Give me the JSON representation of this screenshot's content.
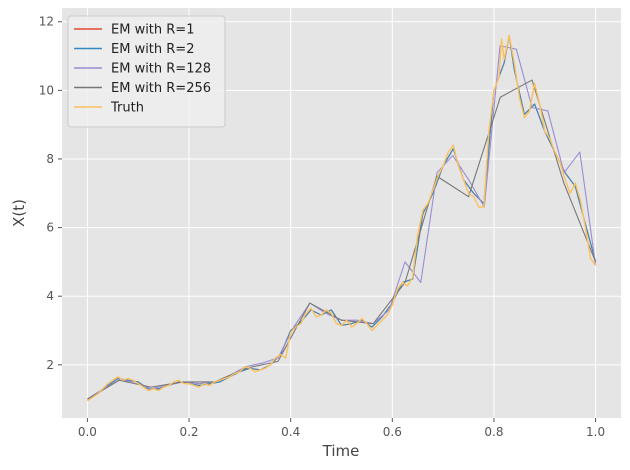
{
  "chart_data": {
    "type": "line",
    "title": "",
    "xlabel": "Time",
    "ylabel": "X(t)",
    "xlim": [
      -0.05,
      1.05
    ],
    "ylim": [
      0.45,
      12.4
    ],
    "xticks": [
      0.0,
      0.2,
      0.4,
      0.6,
      0.8,
      1.0
    ],
    "xtick_labels": [
      "0.0",
      "0.2",
      "0.4",
      "0.6",
      "0.8",
      "1.0"
    ],
    "yticks": [
      2,
      4,
      6,
      8,
      10,
      12
    ],
    "ytick_labels": [
      "2",
      "4",
      "6",
      "8",
      "10",
      "12"
    ],
    "grid": true,
    "background": "#e5e5e5",
    "legend_position": "top-left",
    "series": [
      {
        "name": "EM with R=1",
        "color": "#e24a33",
        "points": [
          [
            0.0,
            1.0
          ],
          [
            0.02,
            1.15
          ],
          [
            0.04,
            1.4
          ],
          [
            0.06,
            1.6
          ],
          [
            0.08,
            1.55
          ],
          [
            0.1,
            1.5
          ],
          [
            0.12,
            1.3
          ],
          [
            0.14,
            1.3
          ],
          [
            0.16,
            1.4
          ],
          [
            0.18,
            1.5
          ],
          [
            0.2,
            1.45
          ],
          [
            0.22,
            1.4
          ],
          [
            0.24,
            1.45
          ],
          [
            0.26,
            1.5
          ],
          [
            0.28,
            1.65
          ],
          [
            0.3,
            1.8
          ],
          [
            0.32,
            1.9
          ],
          [
            0.34,
            1.85
          ],
          [
            0.36,
            2.0
          ],
          [
            0.38,
            2.3
          ],
          [
            0.4,
            3.0
          ],
          [
            0.42,
            3.25
          ],
          [
            0.44,
            3.6
          ],
          [
            0.46,
            3.45
          ],
          [
            0.48,
            3.6
          ],
          [
            0.5,
            3.15
          ],
          [
            0.52,
            3.2
          ],
          [
            0.54,
            3.3
          ],
          [
            0.56,
            3.1
          ],
          [
            0.58,
            3.4
          ],
          [
            0.6,
            3.8
          ],
          [
            0.62,
            4.4
          ],
          [
            0.64,
            4.5
          ],
          [
            0.66,
            6.4
          ],
          [
            0.68,
            7.0
          ],
          [
            0.7,
            7.8
          ],
          [
            0.72,
            8.3
          ],
          [
            0.74,
            7.4
          ],
          [
            0.76,
            7.0
          ],
          [
            0.78,
            6.7
          ],
          [
            0.8,
            10.0
          ],
          [
            0.82,
            10.8
          ],
          [
            0.83,
            11.6
          ],
          [
            0.84,
            10.6
          ],
          [
            0.86,
            9.3
          ],
          [
            0.88,
            9.6
          ],
          [
            0.9,
            8.8
          ],
          [
            0.92,
            8.2
          ],
          [
            0.94,
            7.6
          ],
          [
            0.96,
            7.2
          ],
          [
            0.98,
            6.1
          ],
          [
            1.0,
            5.0
          ]
        ]
      },
      {
        "name": "EM with R=2",
        "color": "#348abd",
        "points": [
          [
            0.0,
            1.0
          ],
          [
            0.02,
            1.15
          ],
          [
            0.04,
            1.4
          ],
          [
            0.06,
            1.6
          ],
          [
            0.08,
            1.55
          ],
          [
            0.1,
            1.5
          ],
          [
            0.12,
            1.3
          ],
          [
            0.14,
            1.3
          ],
          [
            0.16,
            1.4
          ],
          [
            0.18,
            1.5
          ],
          [
            0.2,
            1.45
          ],
          [
            0.22,
            1.4
          ],
          [
            0.24,
            1.45
          ],
          [
            0.26,
            1.5
          ],
          [
            0.28,
            1.65
          ],
          [
            0.3,
            1.8
          ],
          [
            0.32,
            1.9
          ],
          [
            0.34,
            1.85
          ],
          [
            0.36,
            2.0
          ],
          [
            0.38,
            2.3
          ],
          [
            0.4,
            3.0
          ],
          [
            0.42,
            3.25
          ],
          [
            0.44,
            3.6
          ],
          [
            0.46,
            3.45
          ],
          [
            0.48,
            3.6
          ],
          [
            0.5,
            3.15
          ],
          [
            0.52,
            3.2
          ],
          [
            0.54,
            3.3
          ],
          [
            0.56,
            3.1
          ],
          [
            0.58,
            3.4
          ],
          [
            0.6,
            3.8
          ],
          [
            0.62,
            4.4
          ],
          [
            0.64,
            4.5
          ],
          [
            0.66,
            6.4
          ],
          [
            0.68,
            7.0
          ],
          [
            0.7,
            7.8
          ],
          [
            0.72,
            8.3
          ],
          [
            0.74,
            7.4
          ],
          [
            0.76,
            7.0
          ],
          [
            0.78,
            6.7
          ],
          [
            0.8,
            10.0
          ],
          [
            0.82,
            10.8
          ],
          [
            0.83,
            11.6
          ],
          [
            0.84,
            10.6
          ],
          [
            0.86,
            9.3
          ],
          [
            0.88,
            9.6
          ],
          [
            0.9,
            8.8
          ],
          [
            0.92,
            8.2
          ],
          [
            0.94,
            7.6
          ],
          [
            0.96,
            7.2
          ],
          [
            0.98,
            6.1
          ],
          [
            1.0,
            5.0
          ]
        ]
      },
      {
        "name": "EM with R=128",
        "color": "#988ed5",
        "points": [
          [
            0.0,
            1.0
          ],
          [
            0.031,
            1.3
          ],
          [
            0.062,
            1.55
          ],
          [
            0.094,
            1.5
          ],
          [
            0.125,
            1.3
          ],
          [
            0.156,
            1.4
          ],
          [
            0.188,
            1.5
          ],
          [
            0.219,
            1.45
          ],
          [
            0.25,
            1.5
          ],
          [
            0.281,
            1.7
          ],
          [
            0.312,
            1.95
          ],
          [
            0.344,
            2.05
          ],
          [
            0.375,
            2.2
          ],
          [
            0.406,
            3.1
          ],
          [
            0.438,
            3.8
          ],
          [
            0.469,
            3.5
          ],
          [
            0.5,
            3.3
          ],
          [
            0.531,
            3.3
          ],
          [
            0.562,
            3.2
          ],
          [
            0.594,
            3.6
          ],
          [
            0.625,
            5.0
          ],
          [
            0.656,
            4.4
          ],
          [
            0.688,
            7.6
          ],
          [
            0.719,
            8.1
          ],
          [
            0.75,
            7.4
          ],
          [
            0.781,
            6.6
          ],
          [
            0.812,
            11.3
          ],
          [
            0.844,
            11.2
          ],
          [
            0.875,
            9.5
          ],
          [
            0.906,
            9.4
          ],
          [
            0.938,
            7.6
          ],
          [
            0.969,
            8.2
          ],
          [
            1.0,
            4.9
          ]
        ]
      },
      {
        "name": "EM with R=256",
        "color": "#777777",
        "points": [
          [
            0.0,
            1.0
          ],
          [
            0.0625,
            1.55
          ],
          [
            0.125,
            1.35
          ],
          [
            0.1875,
            1.5
          ],
          [
            0.25,
            1.5
          ],
          [
            0.3125,
            1.9
          ],
          [
            0.375,
            2.1
          ],
          [
            0.4375,
            3.8
          ],
          [
            0.5,
            3.3
          ],
          [
            0.5625,
            3.2
          ],
          [
            0.625,
            4.4
          ],
          [
            0.6875,
            7.5
          ],
          [
            0.75,
            6.9
          ],
          [
            0.8125,
            9.8
          ],
          [
            0.875,
            10.3
          ],
          [
            0.9375,
            7.3
          ],
          [
            1.0,
            5.0
          ]
        ]
      },
      {
        "name": "Truth",
        "color": "#fbc15e",
        "points": [
          [
            0.0,
            0.95
          ],
          [
            0.01,
            1.05
          ],
          [
            0.02,
            1.15
          ],
          [
            0.03,
            1.3
          ],
          [
            0.04,
            1.45
          ],
          [
            0.05,
            1.55
          ],
          [
            0.06,
            1.65
          ],
          [
            0.07,
            1.55
          ],
          [
            0.08,
            1.6
          ],
          [
            0.09,
            1.55
          ],
          [
            0.1,
            1.45
          ],
          [
            0.11,
            1.35
          ],
          [
            0.12,
            1.25
          ],
          [
            0.13,
            1.3
          ],
          [
            0.14,
            1.25
          ],
          [
            0.15,
            1.35
          ],
          [
            0.16,
            1.4
          ],
          [
            0.17,
            1.5
          ],
          [
            0.18,
            1.55
          ],
          [
            0.19,
            1.45
          ],
          [
            0.2,
            1.45
          ],
          [
            0.21,
            1.4
          ],
          [
            0.22,
            1.35
          ],
          [
            0.23,
            1.45
          ],
          [
            0.24,
            1.4
          ],
          [
            0.25,
            1.5
          ],
          [
            0.26,
            1.55
          ],
          [
            0.27,
            1.6
          ],
          [
            0.28,
            1.65
          ],
          [
            0.29,
            1.75
          ],
          [
            0.3,
            1.8
          ],
          [
            0.31,
            1.95
          ],
          [
            0.32,
            1.9
          ],
          [
            0.33,
            1.8
          ],
          [
            0.34,
            1.85
          ],
          [
            0.35,
            1.9
          ],
          [
            0.36,
            2.0
          ],
          [
            0.37,
            2.2
          ],
          [
            0.38,
            2.3
          ],
          [
            0.39,
            2.2
          ],
          [
            0.4,
            2.95
          ],
          [
            0.41,
            3.1
          ],
          [
            0.42,
            3.2
          ],
          [
            0.43,
            3.5
          ],
          [
            0.44,
            3.65
          ],
          [
            0.45,
            3.4
          ],
          [
            0.46,
            3.45
          ],
          [
            0.47,
            3.6
          ],
          [
            0.48,
            3.5
          ],
          [
            0.49,
            3.2
          ],
          [
            0.5,
            3.15
          ],
          [
            0.51,
            3.3
          ],
          [
            0.52,
            3.1
          ],
          [
            0.53,
            3.2
          ],
          [
            0.54,
            3.35
          ],
          [
            0.55,
            3.2
          ],
          [
            0.56,
            3.0
          ],
          [
            0.57,
            3.15
          ],
          [
            0.58,
            3.3
          ],
          [
            0.59,
            3.45
          ],
          [
            0.6,
            3.75
          ],
          [
            0.61,
            4.2
          ],
          [
            0.62,
            4.4
          ],
          [
            0.63,
            4.3
          ],
          [
            0.64,
            4.55
          ],
          [
            0.65,
            5.8
          ],
          [
            0.66,
            6.5
          ],
          [
            0.67,
            6.7
          ],
          [
            0.68,
            7.1
          ],
          [
            0.69,
            7.5
          ],
          [
            0.7,
            7.8
          ],
          [
            0.71,
            8.2
          ],
          [
            0.72,
            8.4
          ],
          [
            0.73,
            7.8
          ],
          [
            0.74,
            7.4
          ],
          [
            0.75,
            7.0
          ],
          [
            0.76,
            6.9
          ],
          [
            0.77,
            6.6
          ],
          [
            0.78,
            6.6
          ],
          [
            0.79,
            8.8
          ],
          [
            0.8,
            10.0
          ],
          [
            0.81,
            10.4
          ],
          [
            0.815,
            11.5
          ],
          [
            0.82,
            10.9
          ],
          [
            0.83,
            11.6
          ],
          [
            0.84,
            10.8
          ],
          [
            0.85,
            9.8
          ],
          [
            0.86,
            9.2
          ],
          [
            0.87,
            9.4
          ],
          [
            0.88,
            10.2
          ],
          [
            0.89,
            9.6
          ],
          [
            0.9,
            8.8
          ],
          [
            0.91,
            8.6
          ],
          [
            0.92,
            8.2
          ],
          [
            0.93,
            7.9
          ],
          [
            0.94,
            7.4
          ],
          [
            0.95,
            7.0
          ],
          [
            0.96,
            7.3
          ],
          [
            0.97,
            6.8
          ],
          [
            0.98,
            6.0
          ],
          [
            0.99,
            5.1
          ],
          [
            1.0,
            4.9
          ]
        ]
      }
    ]
  }
}
